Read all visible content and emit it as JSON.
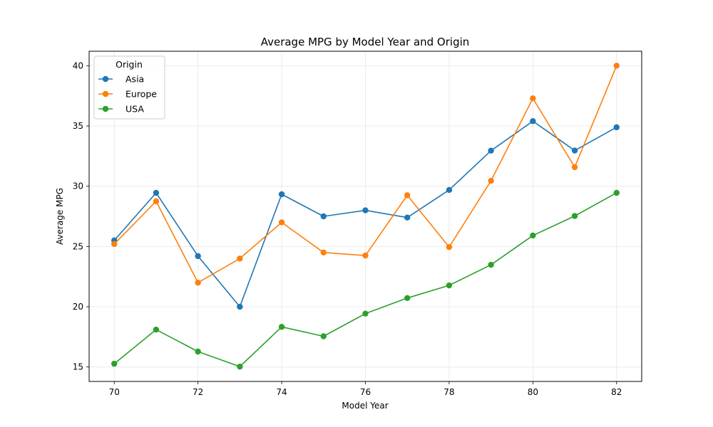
{
  "chart_data": {
    "type": "line",
    "title": "Average MPG by Model Year and Origin",
    "xlabel": "Model Year",
    "ylabel": "Average MPG",
    "x": [
      70,
      71,
      72,
      73,
      74,
      75,
      76,
      77,
      78,
      79,
      80,
      81,
      82
    ],
    "xlim": [
      69.4,
      82.6
    ],
    "ylim": [
      13.8,
      41.2
    ],
    "xticks": [
      70,
      72,
      74,
      76,
      78,
      80,
      82
    ],
    "yticks": [
      15,
      20,
      25,
      30,
      35,
      40
    ],
    "grid": true,
    "legend": {
      "title": "Origin",
      "placement": "top-left"
    },
    "series": [
      {
        "name": "Asia",
        "color": "#1f77b4",
        "values": [
          25.5,
          29.45,
          24.2,
          20.0,
          29.33,
          27.5,
          28.0,
          27.4,
          29.69,
          32.95,
          35.4,
          32.96,
          34.89
        ]
      },
      {
        "name": "Europe",
        "color": "#ff7f0e",
        "values": [
          25.2,
          28.75,
          22.0,
          24.0,
          27.0,
          24.5,
          24.25,
          29.25,
          24.95,
          30.45,
          37.29,
          31.58,
          40.0
        ]
      },
      {
        "name": "USA",
        "color": "#2ca02c",
        "values": [
          15.27,
          18.1,
          16.28,
          15.03,
          18.33,
          17.55,
          19.43,
          20.72,
          21.77,
          23.48,
          25.91,
          27.53,
          29.45
        ]
      }
    ]
  }
}
